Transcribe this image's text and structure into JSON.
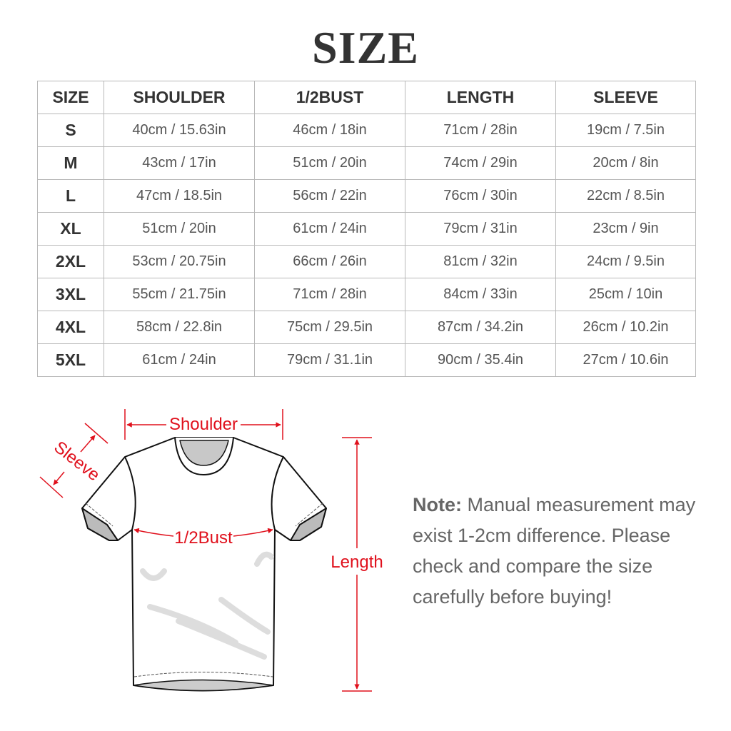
{
  "title": "SIZE",
  "table": {
    "headers": [
      "SIZE",
      "SHOULDER",
      "1/2BUST",
      "LENGTH",
      "SLEEVE"
    ],
    "rows": [
      [
        "S",
        "40cm / 15.63in",
        "46cm / 18in",
        "71cm / 28in",
        "19cm / 7.5in"
      ],
      [
        "M",
        "43cm / 17in",
        "51cm / 20in",
        "74cm / 29in",
        "20cm / 8in"
      ],
      [
        "L",
        "47cm / 18.5in",
        "56cm / 22in",
        "76cm / 30in",
        "22cm / 8.5in"
      ],
      [
        "XL",
        "51cm / 20in",
        "61cm / 24in",
        "79cm / 31in",
        "23cm / 9in"
      ],
      [
        "2XL",
        "53cm / 20.75in",
        "66cm / 26in",
        "81cm / 32in",
        "24cm / 9.5in"
      ],
      [
        "3XL",
        "55cm / 21.75in",
        "71cm / 28in",
        "84cm / 33in",
        "25cm / 10in"
      ],
      [
        "4XL",
        "58cm / 22.8in",
        "75cm / 29.5in",
        "87cm / 34.2in",
        "26cm / 10.2in"
      ],
      [
        "5XL",
        "61cm / 24in",
        "79cm / 31.1in",
        "90cm / 35.4in",
        "27cm / 10.6in"
      ]
    ]
  },
  "diagram": {
    "labels": {
      "shoulder": "Shoulder",
      "sleeve": "Sleeve",
      "bust": "1/2Bust",
      "length": "Length"
    },
    "accent_color": "#e0101c"
  },
  "note": {
    "label": "Note:",
    "text": "Manual measurement may exist 1-2cm difference. Please check and compare the size carefully before buying!"
  }
}
